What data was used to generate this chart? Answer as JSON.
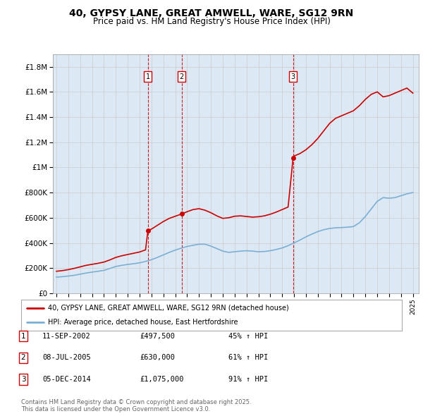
{
  "title": "40, GYPSY LANE, GREAT AMWELL, WARE, SG12 9RN",
  "subtitle": "Price paid vs. HM Land Registry's House Price Index (HPI)",
  "ylim": [
    0,
    1900000
  ],
  "yticks": [
    0,
    200000,
    400000,
    600000,
    800000,
    1000000,
    1200000,
    1400000,
    1600000,
    1800000
  ],
  "ytick_labels": [
    "£0",
    "£200K",
    "£400K",
    "£600K",
    "£800K",
    "£1M",
    "£1.2M",
    "£1.4M",
    "£1.6M",
    "£1.8M"
  ],
  "sale_year_floats": [
    2002.7,
    2005.54,
    2014.92
  ],
  "sale_prices": [
    497500,
    630000,
    1075000
  ],
  "sale_labels": [
    "1",
    "2",
    "3"
  ],
  "legend_house_label": "40, GYPSY LANE, GREAT AMWELL, WARE, SG12 9RN (detached house)",
  "legend_hpi_label": "HPI: Average price, detached house, East Hertfordshire",
  "table_rows": [
    [
      "1",
      "11-SEP-2002",
      "£497,500",
      "45% ↑ HPI"
    ],
    [
      "2",
      "08-JUL-2005",
      "£630,000",
      "61% ↑ HPI"
    ],
    [
      "3",
      "05-DEC-2014",
      "£1,075,000",
      "91% ↑ HPI"
    ]
  ],
  "footer": "Contains HM Land Registry data © Crown copyright and database right 2025.\nThis data is licensed under the Open Government Licence v3.0.",
  "house_color": "#cc0000",
  "hpi_color": "#7bafd4",
  "sale_color": "#cc0000",
  "grid_color": "#cccccc",
  "background_color": "#ffffff",
  "chart_bg": "#dce9f5",
  "hpi_years": [
    1995,
    1995.5,
    1996,
    1996.5,
    1997,
    1997.5,
    1998,
    1998.5,
    1999,
    1999.5,
    2000,
    2000.5,
    2001,
    2001.5,
    2002,
    2002.5,
    2003,
    2003.5,
    2004,
    2004.5,
    2005,
    2005.5,
    2006,
    2006.5,
    2007,
    2007.5,
    2008,
    2008.5,
    2009,
    2009.5,
    2010,
    2010.5,
    2011,
    2011.5,
    2012,
    2012.5,
    2013,
    2013.5,
    2014,
    2014.5,
    2015,
    2015.5,
    2016,
    2016.5,
    2017,
    2017.5,
    2018,
    2018.5,
    2019,
    2019.5,
    2020,
    2020.5,
    2021,
    2021.5,
    2022,
    2022.5,
    2023,
    2023.5,
    2024,
    2024.5,
    2025
  ],
  "hpi_values": [
    128000,
    132000,
    137000,
    143000,
    152000,
    161000,
    168000,
    175000,
    182000,
    197000,
    213000,
    222000,
    229000,
    235000,
    242000,
    253000,
    267000,
    285000,
    305000,
    325000,
    343000,
    358000,
    372000,
    381000,
    390000,
    390000,
    375000,
    355000,
    335000,
    325000,
    330000,
    335000,
    338000,
    335000,
    330000,
    332000,
    338000,
    348000,
    360000,
    378000,
    400000,
    423000,
    448000,
    470000,
    490000,
    505000,
    515000,
    520000,
    522000,
    525000,
    530000,
    560000,
    610000,
    670000,
    730000,
    760000,
    755000,
    760000,
    775000,
    790000,
    800000
  ],
  "house_years": [
    1995,
    1995.5,
    1996,
    1996.5,
    1997,
    1997.5,
    1998,
    1998.5,
    1999,
    1999.5,
    2000,
    2000.5,
    2001,
    2001.5,
    2002,
    2002.5,
    2002.7,
    2003,
    2003.5,
    2004,
    2004.5,
    2005,
    2005.54,
    2006,
    2006.5,
    2007,
    2007.5,
    2008,
    2008.5,
    2009,
    2009.5,
    2010,
    2010.5,
    2011,
    2011.5,
    2012,
    2012.5,
    2013,
    2013.5,
    2014,
    2014.5,
    2014.92,
    2015,
    2015.5,
    2016,
    2016.5,
    2017,
    2017.5,
    2018,
    2018.5,
    2019,
    2019.5,
    2020,
    2020.5,
    2021,
    2021.5,
    2022,
    2022.5,
    2023,
    2023.5,
    2024,
    2024.5,
    2025
  ],
  "house_values": [
    175000,
    180000,
    188000,
    198000,
    210000,
    222000,
    230000,
    238000,
    248000,
    265000,
    285000,
    298000,
    308000,
    318000,
    328000,
    345000,
    497500,
    510000,
    540000,
    570000,
    595000,
    612000,
    630000,
    648000,
    665000,
    672000,
    660000,
    640000,
    615000,
    595000,
    600000,
    612000,
    615000,
    610000,
    605000,
    608000,
    615000,
    628000,
    645000,
    665000,
    685000,
    1075000,
    1090000,
    1110000,
    1140000,
    1180000,
    1230000,
    1290000,
    1350000,
    1390000,
    1410000,
    1430000,
    1450000,
    1490000,
    1540000,
    1580000,
    1600000,
    1560000,
    1570000,
    1590000,
    1610000,
    1630000,
    1590000
  ]
}
